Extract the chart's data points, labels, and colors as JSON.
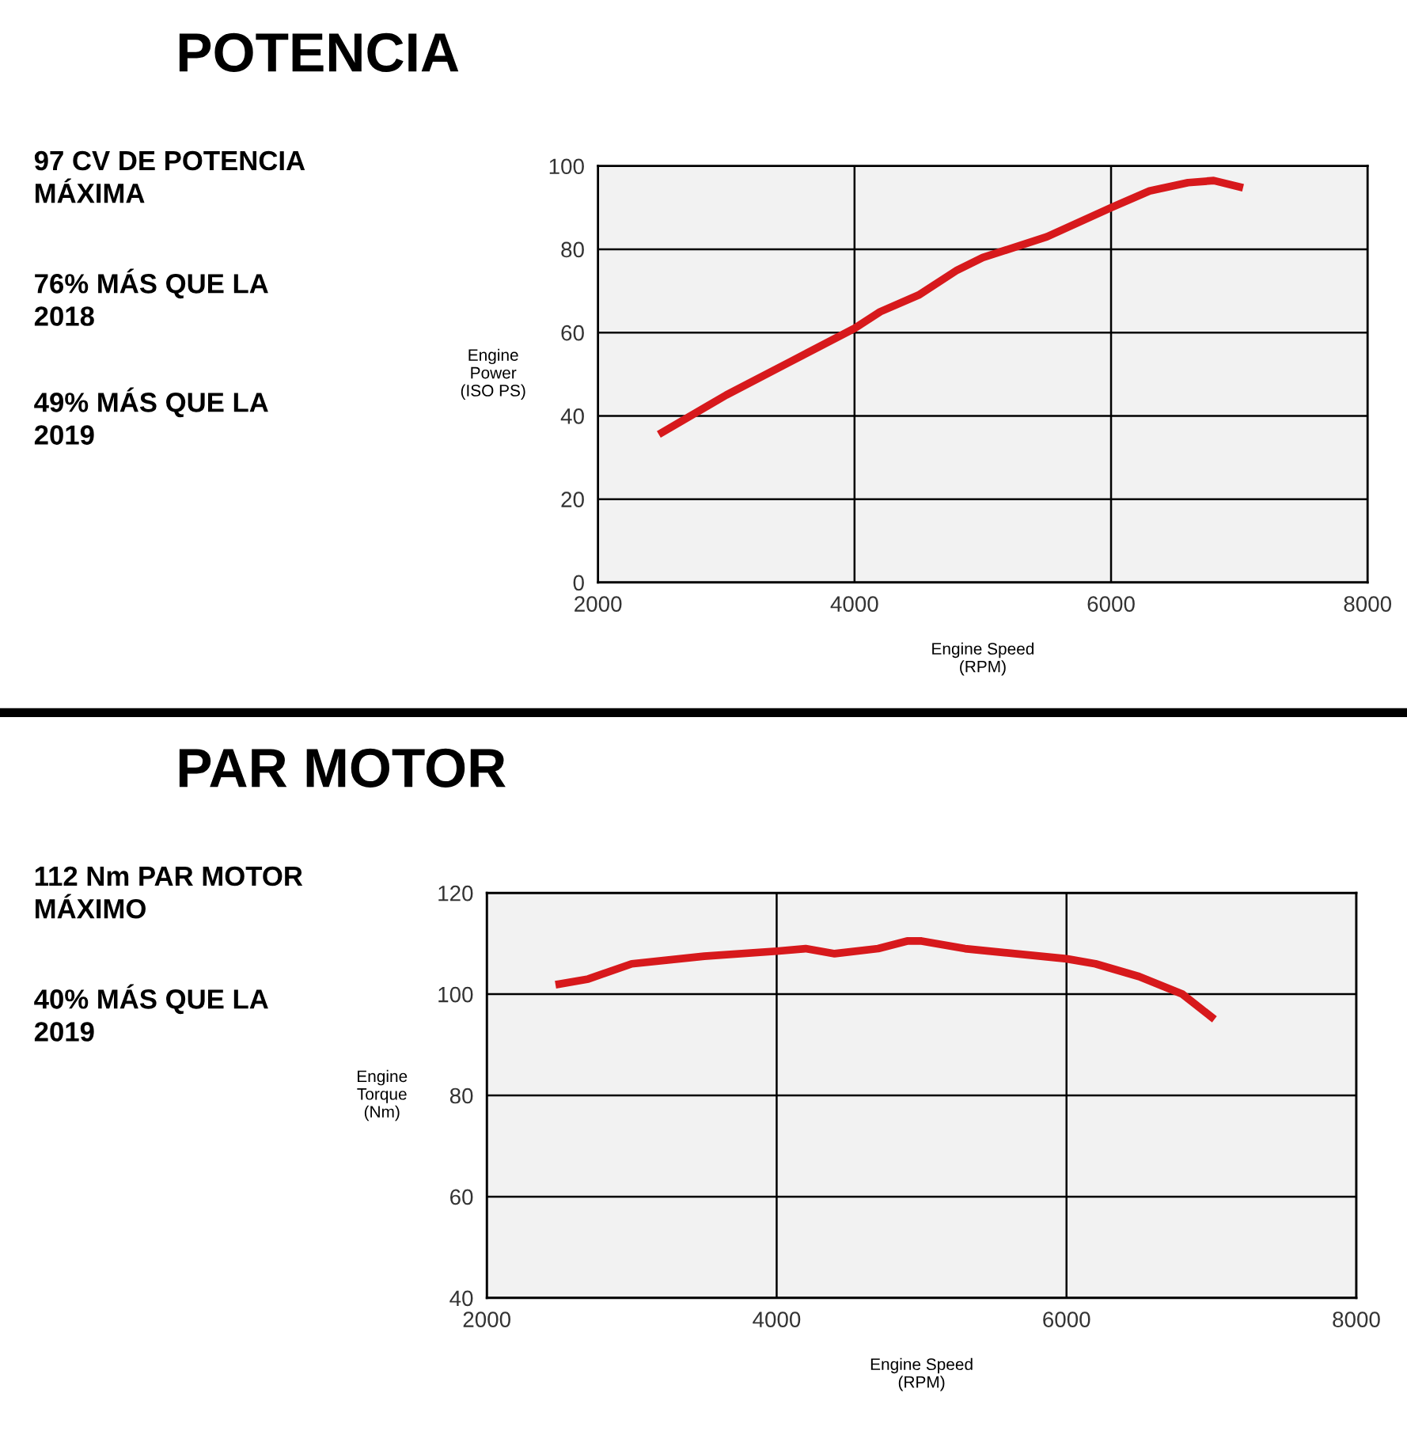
{
  "chart_data": [
    {
      "type": "line",
      "title": "POTENCIA",
      "xlabel": "Engine Speed\n(RPM)",
      "ylabel": "Engine\nPower\n(ISO PS)",
      "annotations": [
        "97 CV DE POTENCIA\nMÁXIMA",
        "76% MÁS QUE LA\n2018",
        "49% MÁS QUE LA\n2019"
      ],
      "series": [
        {
          "color": "#d7191c",
          "x": [
            2500,
            3000,
            3500,
            4000,
            4200,
            4500,
            4800,
            5000,
            5500,
            6000,
            6300,
            6600,
            6800,
            7000
          ],
          "values": [
            36,
            45,
            53,
            61,
            65,
            69,
            75,
            78,
            83,
            90,
            94,
            96,
            96.5,
            95
          ]
        }
      ],
      "xlim": [
        2000,
        8000
      ],
      "xticks": [
        2000,
        4000,
        6000,
        8000
      ],
      "ylim": [
        0,
        100
      ],
      "yticks": [
        0,
        20,
        40,
        60,
        80,
        100
      ],
      "grid": true,
      "legend": false,
      "marker": "none",
      "line_style": "solid"
    },
    {
      "type": "line",
      "title": "PAR MOTOR",
      "xlabel": "Engine Speed\n(RPM)",
      "ylabel": "Engine\nTorque\n(Nm)",
      "annotations": [
        "112 Nm PAR MOTOR\nMÁXIMO",
        "40% MÁS QUE LA\n2019"
      ],
      "series": [
        {
          "color": "#d7191c",
          "x": [
            2500,
            2700,
            3000,
            3500,
            4000,
            4200,
            4400,
            4700,
            4900,
            5000,
            5300,
            6000,
            6200,
            6500,
            6800,
            7000
          ],
          "values": [
            102,
            103,
            106,
            107.5,
            108.5,
            109,
            108,
            109,
            110.5,
            110.5,
            109,
            107,
            106,
            103.5,
            100,
            95.5
          ]
        }
      ],
      "xlim": [
        2000,
        8000
      ],
      "xticks": [
        2000,
        4000,
        6000,
        8000
      ],
      "ylim": [
        40,
        120
      ],
      "yticks": [
        40,
        60,
        80,
        100,
        120
      ],
      "grid": true,
      "legend": false,
      "marker": "none",
      "line_style": "solid"
    }
  ]
}
